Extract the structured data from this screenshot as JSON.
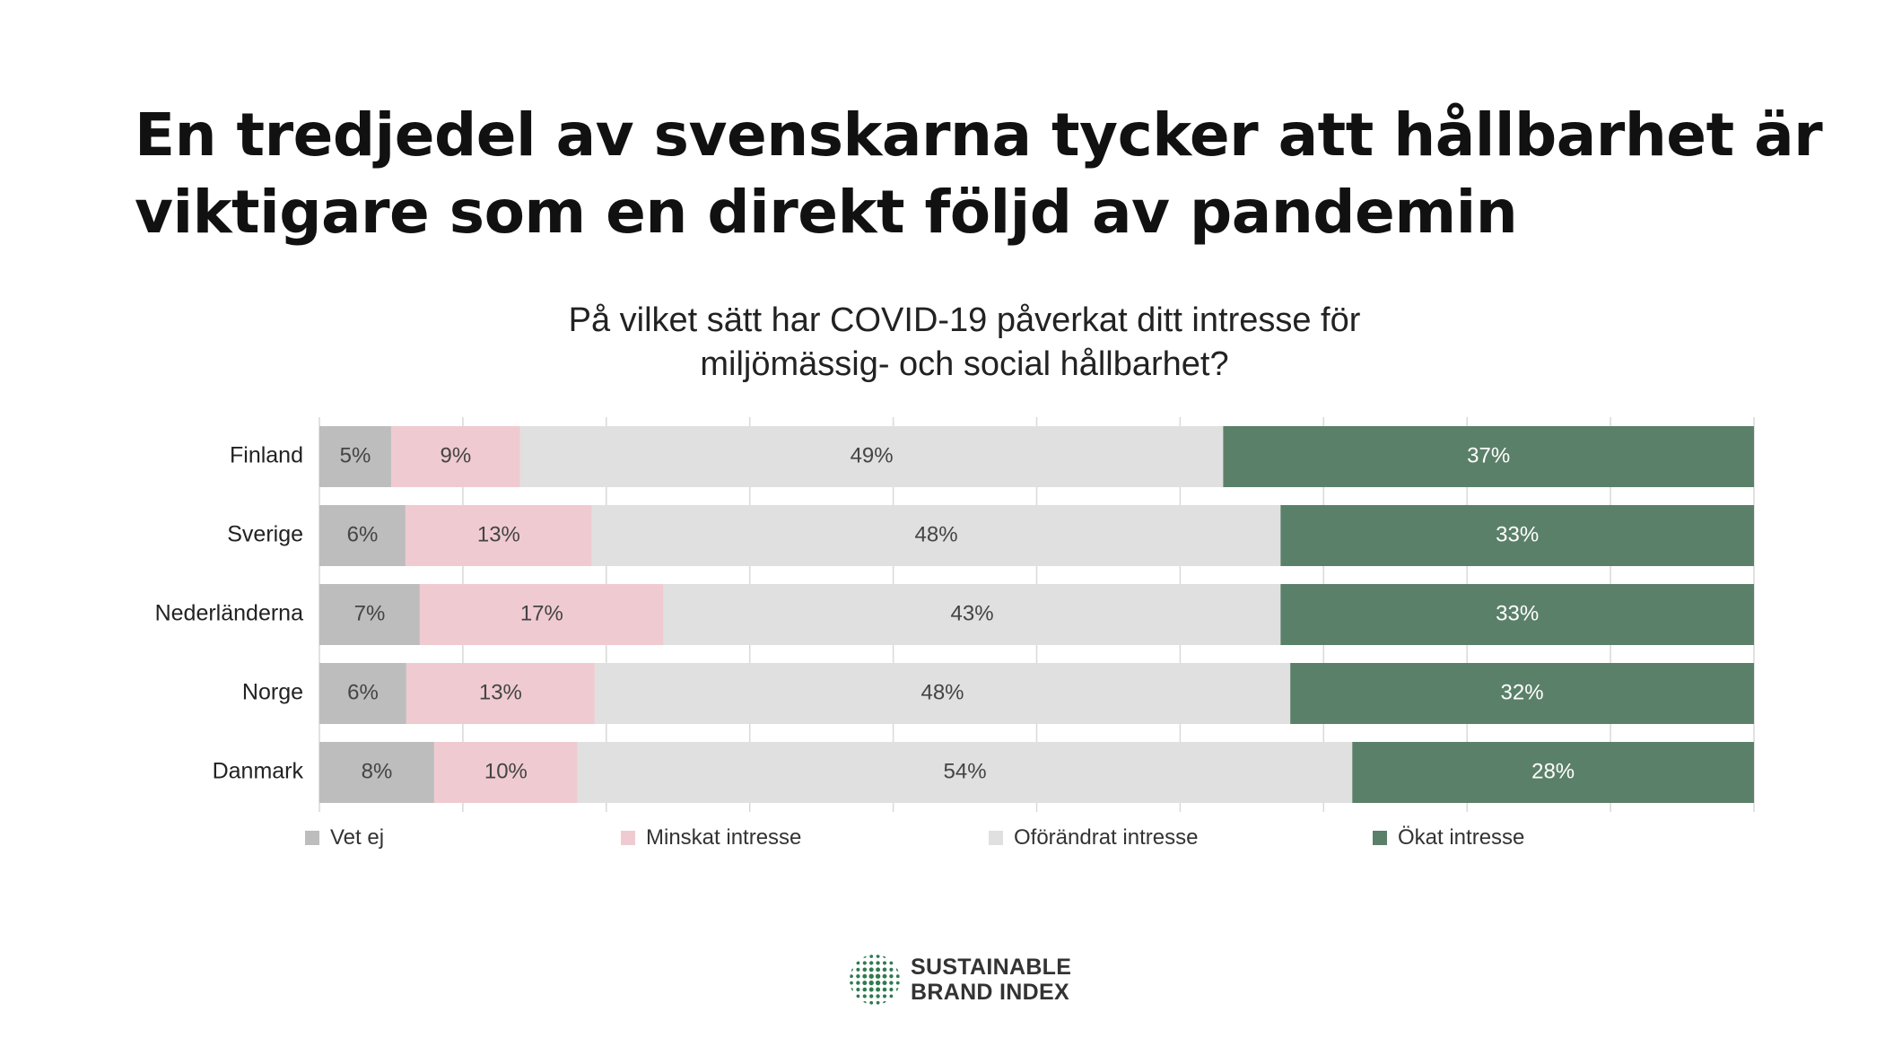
{
  "headline": {
    "line1": "En tredjedel av svenskarna tycker att hållbarhet är",
    "line2": "viktigare som en direkt följd av pandemin"
  },
  "chart_data": {
    "type": "bar",
    "orientation": "horizontal",
    "stacked": true,
    "title_lines": [
      "På vilket sätt har COVID-19 påverkat ditt intresse för",
      "miljömässig- och social hållbarhet?"
    ],
    "categories": [
      "Finland",
      "Sverige",
      "Nederländerna",
      "Norge",
      "Danmark"
    ],
    "series": [
      {
        "name": "Vet ej",
        "color": "#bdbdbd",
        "values": [
          5,
          6,
          7,
          6,
          8
        ]
      },
      {
        "name": "Minskat intresse",
        "color": "#efcbd1",
        "values": [
          9,
          13,
          17,
          13,
          10
        ]
      },
      {
        "name": "Oförändrat intresse",
        "color": "#e0e0e0",
        "values": [
          49,
          48,
          43,
          48,
          54
        ]
      },
      {
        "name": "Ökat intresse",
        "color": "#5b8069",
        "values": [
          37,
          33,
          33,
          32,
          28
        ]
      }
    ],
    "value_suffix": "%",
    "xlim": [
      0,
      100
    ],
    "grid": true,
    "legend_position": "bottom"
  },
  "brand": {
    "line1": "SUSTAINABLE",
    "line2": "BRAND INDEX",
    "logo_icon": "globe-icon",
    "logo_color": "#2f7a4f"
  }
}
